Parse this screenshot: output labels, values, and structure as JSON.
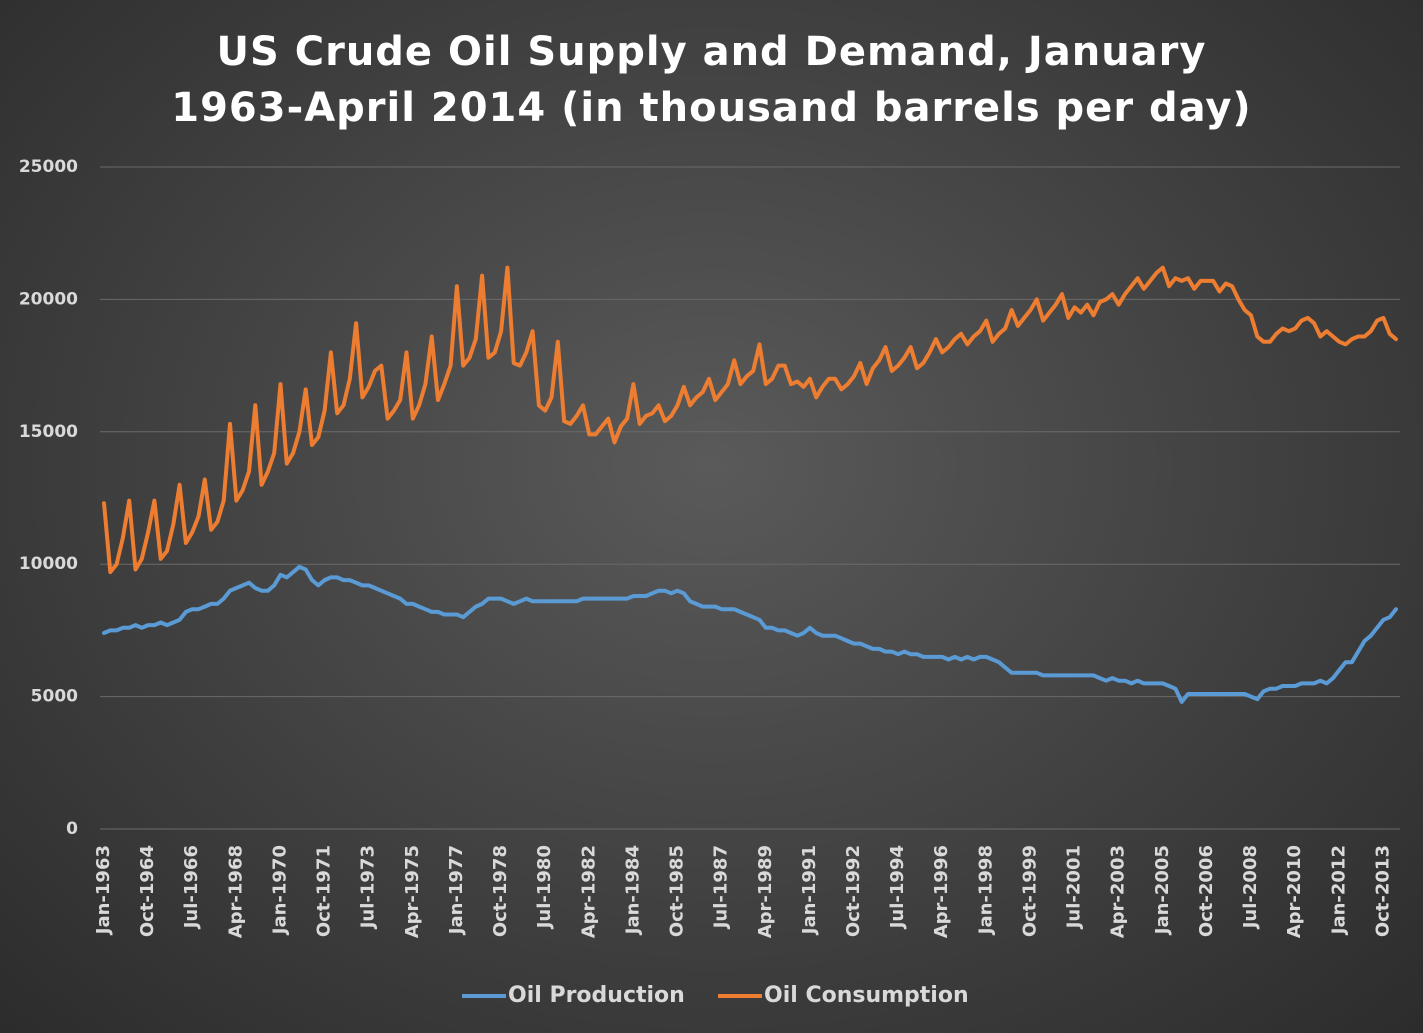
{
  "chart_data": {
    "type": "line",
    "title": "US Crude Oil Supply and Demand, January 1963-April 2014 (in thousand barrels per day)",
    "categories": [
      "Jan-1963",
      null,
      null,
      null,
      null,
      null,
      null,
      "Oct-1964",
      null,
      null,
      null,
      null,
      null,
      null,
      "Jul-1966",
      null,
      null,
      null,
      null,
      null,
      null,
      "Apr-1968",
      null,
      null,
      null,
      null,
      null,
      null,
      "Jan-1970",
      null,
      null,
      null,
      null,
      null,
      null,
      "Oct-1971",
      null,
      null,
      null,
      null,
      null,
      null,
      "Jul-1973",
      null,
      null,
      null,
      null,
      null,
      null,
      "Apr-1975",
      null,
      null,
      null,
      null,
      null,
      null,
      "Jan-1977",
      null,
      null,
      null,
      null,
      null,
      null,
      "Oct-1978",
      null,
      null,
      null,
      null,
      null,
      null,
      "Jul-1980",
      null,
      null,
      null,
      null,
      null,
      null,
      "Apr-1982",
      null,
      null,
      null,
      null,
      null,
      null,
      "Jan-1984",
      null,
      null,
      null,
      null,
      null,
      null,
      "Oct-1985",
      null,
      null,
      null,
      null,
      null,
      null,
      "Jul-1987",
      null,
      null,
      null,
      null,
      null,
      null,
      "Apr-1989",
      null,
      null,
      null,
      null,
      null,
      null,
      "Jan-1991",
      null,
      null,
      null,
      null,
      null,
      null,
      "Oct-1992",
      null,
      null,
      null,
      null,
      null,
      null,
      "Jul-1994",
      null,
      null,
      null,
      null,
      null,
      null,
      "Apr-1996",
      null,
      null,
      null,
      null,
      null,
      null,
      "Jan-1998",
      null,
      null,
      null,
      null,
      null,
      null,
      "Oct-1999",
      null,
      null,
      null,
      null,
      null,
      null,
      "Jul-2001",
      null,
      null,
      null,
      null,
      null,
      null,
      "Apr-2003",
      null,
      null,
      null,
      null,
      null,
      null,
      "Jan-2005",
      null,
      null,
      null,
      null,
      null,
      null,
      "Oct-2006",
      null,
      null,
      null,
      null,
      null,
      null,
      "Jul-2008",
      null,
      null,
      null,
      null,
      null,
      null,
      "Apr-2010",
      null,
      null,
      null,
      null,
      null,
      null,
      "Jan-2012",
      null,
      null,
      null,
      null,
      null,
      null,
      "Oct-2013",
      null,
      null
    ],
    "series": [
      {
        "name": "Oil Production",
        "color": "#5b9bd5",
        "values": [
          7400,
          7500,
          7500,
          7600,
          7600,
          7700,
          7600,
          7700,
          7700,
          7800,
          7700,
          7800,
          7900,
          8200,
          8300,
          8300,
          8400,
          8500,
          8500,
          8700,
          9000,
          9100,
          9200,
          9300,
          9100,
          9000,
          9000,
          9200,
          9600,
          9500,
          9700,
          9900,
          9800,
          9400,
          9200,
          9400,
          9500,
          9500,
          9400,
          9400,
          9300,
          9200,
          9200,
          9100,
          9000,
          8900,
          8800,
          8700,
          8500,
          8500,
          8400,
          8300,
          8200,
          8200,
          8100,
          8100,
          8100,
          8000,
          8200,
          8400,
          8500,
          8700,
          8700,
          8700,
          8600,
          8500,
          8600,
          8700,
          8600,
          8600,
          8600,
          8600,
          8600,
          8600,
          8600,
          8600,
          8700,
          8700,
          8700,
          8700,
          8700,
          8700,
          8700,
          8700,
          8800,
          8800,
          8800,
          8900,
          9000,
          9000,
          8900,
          9000,
          8900,
          8600,
          8500,
          8400,
          8400,
          8400,
          8300,
          8300,
          8300,
          8200,
          8100,
          8000,
          7900,
          7600,
          7600,
          7500,
          7500,
          7400,
          7300,
          7400,
          7600,
          7400,
          7300,
          7300,
          7300,
          7200,
          7100,
          7000,
          7000,
          6900,
          6800,
          6800,
          6700,
          6700,
          6600,
          6700,
          6600,
          6600,
          6500,
          6500,
          6500,
          6500,
          6400,
          6500,
          6400,
          6500,
          6400,
          6500,
          6500,
          6400,
          6300,
          6100,
          5900,
          5900,
          5900,
          5900,
          5900,
          5800,
          5800,
          5800,
          5800,
          5800,
          5800,
          5800,
          5800,
          5800,
          5700,
          5600,
          5700,
          5600,
          5600,
          5500,
          5600,
          5500,
          5500,
          5500,
          5500,
          5400,
          5300,
          4800,
          5100,
          5100,
          5100,
          5100,
          5100,
          5100,
          5100,
          5100,
          5100,
          5100,
          5000,
          4900,
          5200,
          5300,
          5300,
          5400,
          5400,
          5400,
          5500,
          5500,
          5500,
          5600,
          5500,
          5700,
          6000,
          6300,
          6300,
          6700,
          7100,
          7300,
          7600,
          7900,
          8000,
          8300
        ]
      },
      {
        "name": "Oil Consumption",
        "color": "#ed7d31",
        "values": [
          12300,
          9700,
          10000,
          11000,
          12400,
          9800,
          10200,
          11200,
          12400,
          10200,
          10500,
          11500,
          13000,
          10800,
          11200,
          11800,
          13200,
          11300,
          11600,
          12400,
          15300,
          12400,
          12800,
          13500,
          16000,
          13000,
          13500,
          14200,
          16800,
          13800,
          14200,
          15000,
          16600,
          14500,
          14800,
          15800,
          18000,
          15700,
          16000,
          17000,
          19100,
          16300,
          16700,
          17300,
          17500,
          15500,
          15800,
          16200,
          18000,
          15500,
          16000,
          16800,
          18600,
          16200,
          16800,
          17500,
          20500,
          17500,
          17800,
          18500,
          20900,
          17800,
          18000,
          18800,
          21200,
          17600,
          17500,
          18000,
          18800,
          16000,
          15800,
          16300,
          18400,
          15400,
          15300,
          15600,
          16000,
          14900,
          14900,
          15200,
          15500,
          14600,
          15200,
          15500,
          16800,
          15300,
          15600,
          15700,
          16000,
          15400,
          15600,
          16000,
          16700,
          16000,
          16300,
          16500,
          17000,
          16200,
          16500,
          16800,
          17700,
          16800,
          17100,
          17300,
          18300,
          16800,
          17000,
          17500,
          17500,
          16800,
          16900,
          16700,
          17000,
          16300,
          16700,
          17000,
          17000,
          16600,
          16800,
          17100,
          17600,
          16800,
          17400,
          17700,
          18200,
          17300,
          17500,
          17800,
          18200,
          17400,
          17600,
          18000,
          18500,
          18000,
          18200,
          18500,
          18700,
          18300,
          18600,
          18800,
          19200,
          18400,
          18700,
          18900,
          19600,
          19000,
          19300,
          19600,
          20000,
          19200,
          19500,
          19800,
          20200,
          19300,
          19700,
          19500,
          19800,
          19400,
          19900,
          20000,
          20200,
          19800,
          20200,
          20500,
          20800,
          20400,
          20700,
          21000,
          21200,
          20500,
          20800,
          20700,
          20800,
          20400,
          20700,
          20700,
          20700,
          20300,
          20600,
          20500,
          20000,
          19600,
          19400,
          18600,
          18400,
          18400,
          18700,
          18900,
          18800,
          18900,
          19200,
          19300,
          19100,
          18600,
          18800,
          18600,
          18400,
          18300,
          18500,
          18600,
          18600,
          18800,
          19200,
          19300,
          18700,
          18500
        ]
      }
    ],
    "ylim": [
      0,
      25000
    ],
    "yticks": [
      0,
      5000,
      10000,
      15000,
      20000,
      25000
    ],
    "grid": true,
    "legend": "bottom"
  }
}
